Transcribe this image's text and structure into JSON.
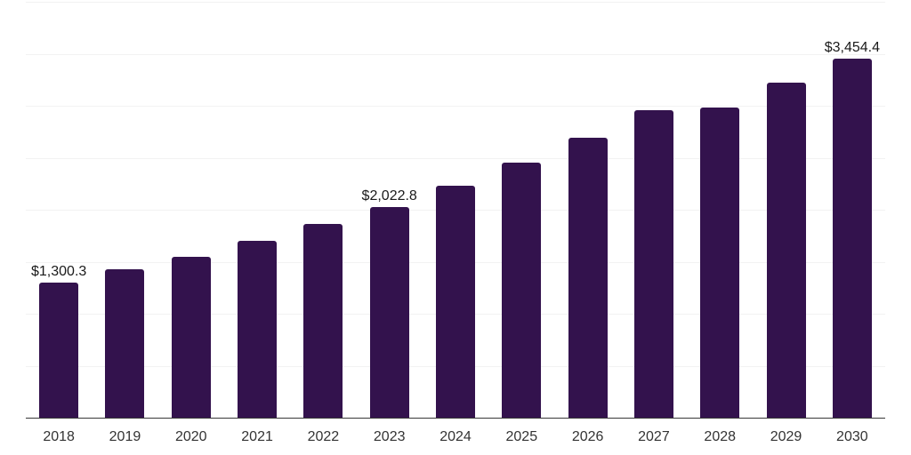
{
  "chart_data": {
    "type": "bar",
    "title": "",
    "xlabel": "",
    "ylabel": "",
    "categories": [
      "2018",
      "2019",
      "2020",
      "2021",
      "2022",
      "2023",
      "2024",
      "2025",
      "2026",
      "2027",
      "2028",
      "2029",
      "2030"
    ],
    "values": [
      1300.3,
      1425,
      1550,
      1700,
      1860,
      2022.8,
      2230,
      2450,
      2695,
      2955,
      2985,
      3220,
      3454.4
    ],
    "bar_labels": [
      "$1,300.3",
      "",
      "",
      "",
      "",
      "$2,022.8",
      "",
      "",
      "",
      "",
      "",
      "",
      "$3,454.4"
    ],
    "ylim": [
      0,
      4000
    ],
    "gridline_step": 500,
    "grid": true,
    "legend": "none",
    "y_axis_tick_labels_visible": false,
    "colors": {
      "bar": "#33124d",
      "gridline": "#f2f2f2",
      "axis_line": "#383838",
      "value_label": "#1a1a1a",
      "tick_label": "#333333",
      "background": "#ffffff"
    }
  }
}
